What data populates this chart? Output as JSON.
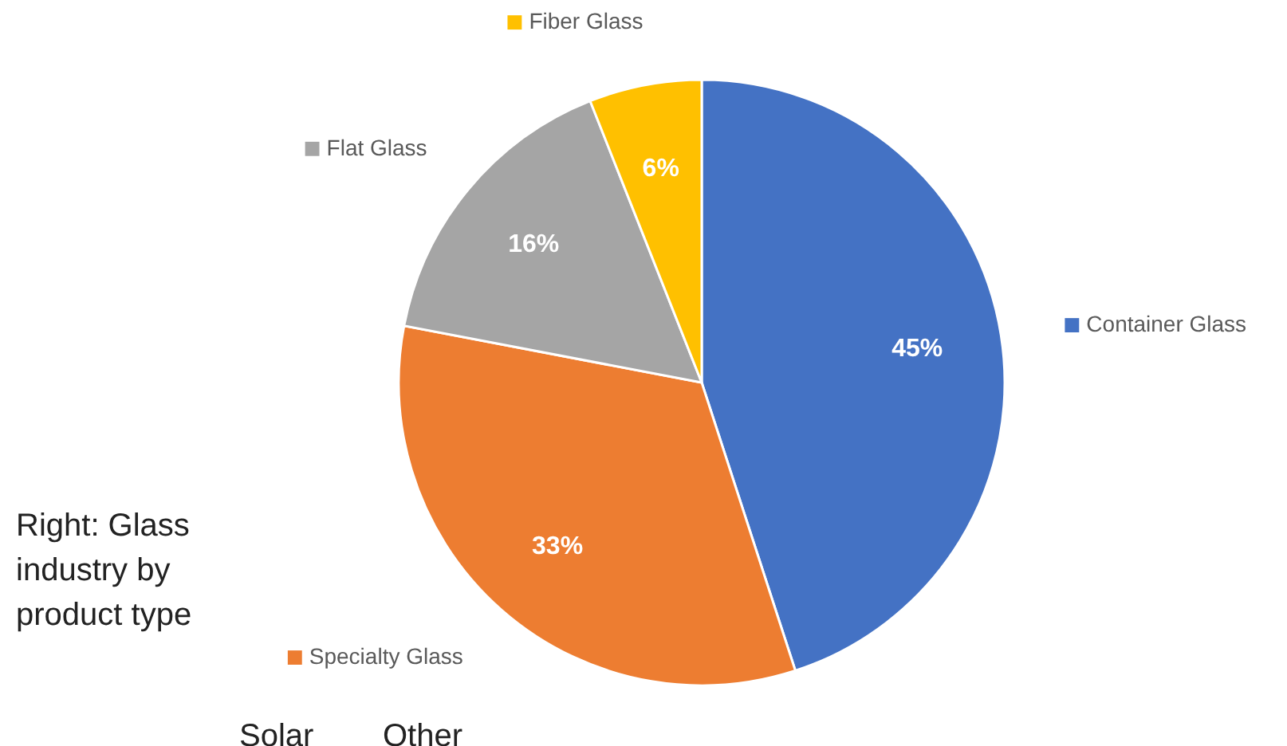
{
  "chart_data": {
    "type": "pie",
    "categories": [
      "Container Glass",
      "Specialty Glass",
      "Flat Glass",
      "Fiber Glass"
    ],
    "values": [
      45,
      33,
      16,
      6
    ],
    "colors": [
      "#4472c4",
      "#ed7d31",
      "#a5a5a5",
      "#ffc000"
    ],
    "value_labels": [
      "45%",
      "33%",
      "16%",
      "6%"
    ],
    "legend": "right",
    "annotations": [
      "Right: Glass industry by product type",
      "Solar",
      "Other"
    ]
  }
}
